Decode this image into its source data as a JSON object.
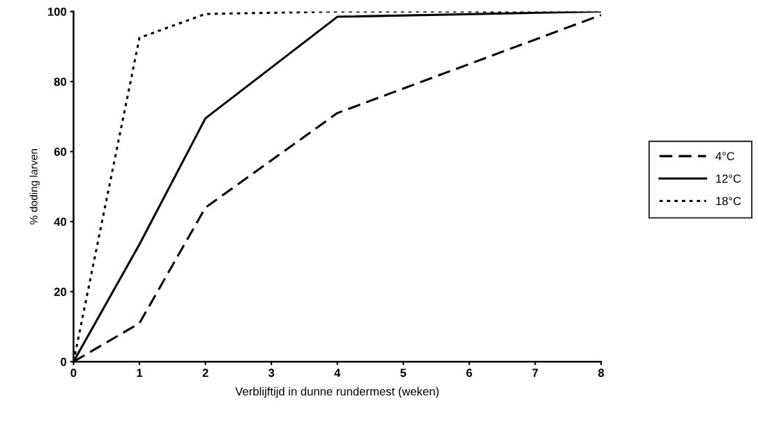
{
  "chart_data": {
    "type": "line",
    "xlabel": "Verblijftijd in dunne rundermest (weken)",
    "ylabel": "% doding larven",
    "xlim": [
      0,
      8
    ],
    "xticks": [
      0,
      1,
      2,
      3,
      4,
      5,
      6,
      7,
      8
    ],
    "ylim": [
      0,
      100
    ],
    "yticks": [
      0,
      20,
      40,
      60,
      80,
      100
    ],
    "grid": false,
    "legend": "right",
    "marker": "none",
    "series": [
      {
        "name": "4°C",
        "color": "#000000",
        "line_style": "dashed",
        "x": [
          0,
          1,
          2,
          4,
          8
        ],
        "values": [
          0,
          11,
          44,
          71,
          99
        ]
      },
      {
        "name": "12°C",
        "color": "#000000",
        "line_style": "solid",
        "x": [
          0,
          1,
          2,
          4,
          8
        ],
        "values": [
          0,
          33.5,
          69.5,
          98.5,
          100
        ]
      },
      {
        "name": "18°C",
        "color": "#000000",
        "line_style": "dotted",
        "x": [
          0,
          1,
          2,
          4,
          8
        ],
        "values": [
          0,
          92.5,
          99.3,
          100,
          100
        ]
      }
    ]
  }
}
